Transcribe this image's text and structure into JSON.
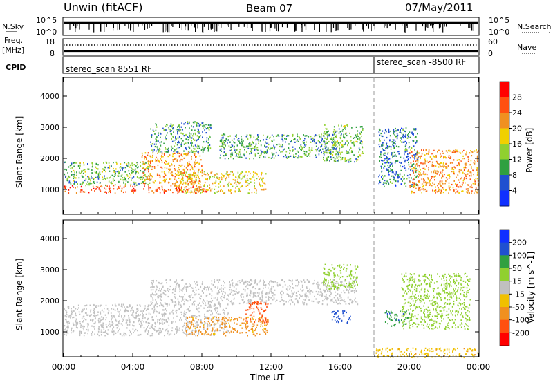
{
  "header": {
    "title": "Unwin (fitACF)",
    "beam": "Beam 07",
    "date": "07/May/2011"
  },
  "top_panels": {
    "nsky_label": "N.Sky",
    "nsky_ticks": [
      "10^5",
      "10^0"
    ],
    "nsearch_label": "N.Search",
    "nsearch_ticks": [
      "10^5",
      "10^0"
    ],
    "freq_label": "Freq.",
    "freq_unit": "[MHz]",
    "freq_ticks": [
      "18",
      "8"
    ],
    "nave_label": "Nave",
    "nave_ticks": [
      "60",
      "0"
    ],
    "cpid_label": "CPID",
    "cpid_segments": [
      {
        "label": "stereo_scan 8551 RF",
        "start_hour": 0
      },
      {
        "label": "stereo_scan -8500 RF",
        "start_hour": 18
      }
    ]
  },
  "chart_data": [
    {
      "type": "heatmap",
      "name": "power-panel",
      "ylabel": "Slant Range [km]",
      "xlabel": "",
      "xlim": [
        0,
        24
      ],
      "ylim": [
        200,
        4600
      ],
      "yticks": [
        1000,
        2000,
        3000,
        4000
      ],
      "colorbar": {
        "label": "Power [dB]",
        "ticks": [
          "4",
          "8",
          "12",
          "16",
          "20",
          "24",
          "28"
        ],
        "range": [
          0,
          32
        ],
        "colors": [
          "#1030ff",
          "#2050d0",
          "#30a040",
          "#90d030",
          "#f0d000",
          "#f09020",
          "#ff5010",
          "#ff0000"
        ]
      },
      "echo_regions": [
        {
          "t0": 0.0,
          "t1": 8.3,
          "r0": 900,
          "r1": 1150,
          "level": 26
        },
        {
          "t0": 0.0,
          "t1": 5.0,
          "r0": 1150,
          "r1": 1900,
          "level": 12
        },
        {
          "t0": 4.5,
          "t1": 8.0,
          "r0": 1200,
          "r1": 2200,
          "level": 22
        },
        {
          "t0": 5.0,
          "t1": 8.5,
          "r0": 2200,
          "r1": 3200,
          "level": 10
        },
        {
          "t0": 6.5,
          "t1": 11.7,
          "r0": 900,
          "r1": 1600,
          "level": 18
        },
        {
          "t0": 9.0,
          "t1": 16.0,
          "r0": 2000,
          "r1": 2800,
          "level": 10
        },
        {
          "t0": 15.0,
          "t1": 17.3,
          "r0": 1900,
          "r1": 3100,
          "level": 12
        },
        {
          "t0": 18.2,
          "t1": 20.5,
          "r0": 1100,
          "r1": 3000,
          "level": 8
        },
        {
          "t0": 20.0,
          "t1": 24.0,
          "r0": 900,
          "r1": 2300,
          "level": 22
        }
      ]
    },
    {
      "type": "heatmap",
      "name": "velocity-panel",
      "ylabel": "Slant Range [km]",
      "xlabel": "Time UT",
      "xlim": [
        0,
        24
      ],
      "ylim": [
        200,
        4600
      ],
      "yticks": [
        1000,
        2000,
        3000,
        4000
      ],
      "xticks": [
        "00:00",
        "04:00",
        "08:00",
        "12:00",
        "16:00",
        "20:00",
        "00:00"
      ],
      "colorbar": {
        "label": "Velocity [m s^-1]",
        "ticks": [
          "-200",
          "-100",
          "-50",
          "-15",
          "15",
          "50",
          "100",
          "200"
        ],
        "colors": [
          "#ff0000",
          "#ff5010",
          "#f09020",
          "#f0c000",
          "#c0c0c0",
          "#90d030",
          "#30a040",
          "#2050d0",
          "#1030ff"
        ]
      },
      "echo_regions": [
        {
          "t0": 0.0,
          "t1": 9.5,
          "r0": 900,
          "r1": 1900,
          "vel": 0
        },
        {
          "t0": 5.0,
          "t1": 17.0,
          "r0": 1900,
          "r1": 2700,
          "vel": 0
        },
        {
          "t0": 7.0,
          "t1": 11.8,
          "r0": 900,
          "r1": 1500,
          "vel": -60
        },
        {
          "t0": 10.5,
          "t1": 11.8,
          "r0": 1300,
          "r1": 2000,
          "vel": -150
        },
        {
          "t0": 15.0,
          "t1": 17.0,
          "r0": 2400,
          "r1": 3200,
          "vel": 30
        },
        {
          "t0": 15.5,
          "t1": 16.6,
          "r0": 1300,
          "r1": 1700,
          "vel": 150
        },
        {
          "t0": 18.5,
          "t1": 20.0,
          "r0": 1200,
          "r1": 1700,
          "vel": 90
        },
        {
          "t0": 19.5,
          "t1": 23.5,
          "r0": 1100,
          "r1": 2900,
          "vel": 30
        },
        {
          "t0": 18.0,
          "t1": 24.0,
          "r0": 200,
          "r1": 500,
          "vel": -40
        }
      ]
    }
  ]
}
